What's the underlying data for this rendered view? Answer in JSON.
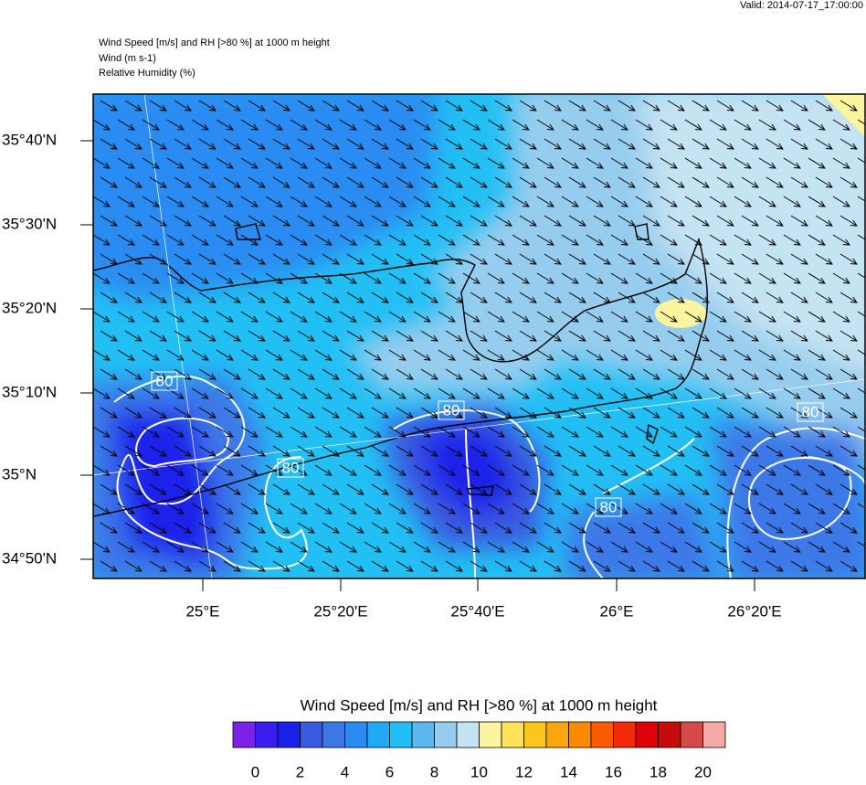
{
  "header": {
    "valid": "Valid: 2014-07-17_17:00:00",
    "title_lines": [
      "Wind Speed [m/s] and RH [>80 %] at 1000 m height",
      "Wind   (m s-1)",
      "Relative Humidity   (%)"
    ]
  },
  "map": {
    "lat_labels": [
      "35°40'N",
      "35°30'N",
      "35°20'N",
      "35°10'N",
      "35°N",
      "34°50'N"
    ],
    "lon_labels": [
      "25°E",
      "25°20'E",
      "25°40'E",
      "26°E",
      "26°20'E"
    ],
    "contour_labels": [
      "80",
      "80",
      "80",
      "80",
      "80"
    ]
  },
  "colorbar": {
    "title": "Wind Speed [m/s] and RH [>80 %] at 1000 m height",
    "colors": [
      "#7a22e8",
      "#3a1ef2",
      "#1a22ea",
      "#3a5ae0",
      "#3c78e8",
      "#2a8cf2",
      "#1eaaf5",
      "#22bff5",
      "#5ab8ec",
      "#96cdee",
      "#c4e3f3",
      "#fcf5a0",
      "#fde35a",
      "#fcc61e",
      "#fca50f",
      "#fc8a00",
      "#fc5a00",
      "#f52a0a",
      "#e0000a",
      "#c80a0a",
      "#d84a4a",
      "#f5a8a8"
    ],
    "ticks": [
      0,
      2,
      4,
      6,
      8,
      10,
      12,
      14,
      16,
      18,
      20
    ]
  }
}
